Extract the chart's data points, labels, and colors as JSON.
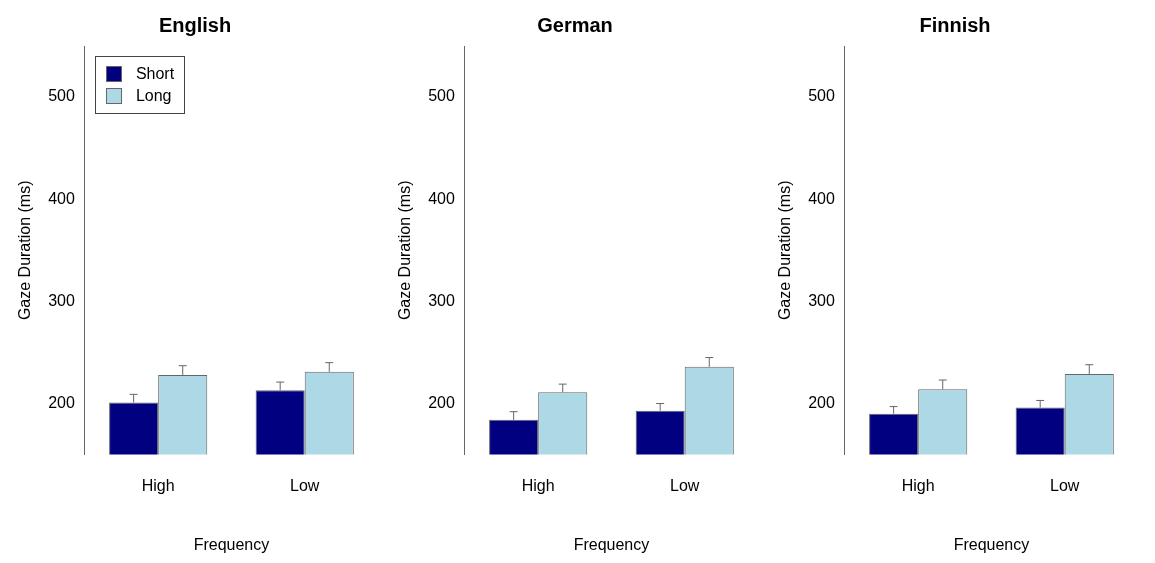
{
  "chart_data": [
    {
      "type": "bar",
      "title": "English",
      "xlabel": "Frequency",
      "ylabel": "Gaze Duration (ms)",
      "categories": [
        "High",
        "Low"
      ],
      "ylim": [
        150,
        550
      ],
      "yticks": [
        200,
        300,
        400,
        500
      ],
      "grid": false,
      "legend": "top left",
      "series": [
        {
          "name": "Short",
          "color": "#000080",
          "values": [
            201,
            213
          ],
          "errors": [
            [
              201,
              209
            ],
            [
              213,
              221
            ]
          ]
        },
        {
          "name": "Long",
          "color": "#add8e6",
          "values": [
            228,
            231
          ],
          "errors": [
            [
              228,
              237
            ],
            [
              231,
              240
            ]
          ]
        }
      ]
    },
    {
      "type": "bar",
      "title": "German",
      "xlabel": "Frequency",
      "ylabel": "Gaze Duration (ms)",
      "categories": [
        "High",
        "Low"
      ],
      "ylim": [
        150,
        550
      ],
      "yticks": [
        200,
        300,
        400,
        500
      ],
      "grid": false,
      "series": [
        {
          "color": "#000080",
          "values": [
            184,
            193
          ],
          "errors": [
            [
              184,
              192
            ],
            [
              193,
              200
            ]
          ]
        },
        {
          "color": "#add8e6",
          "values": [
            211,
            236
          ],
          "errors": [
            [
              211,
              219
            ],
            [
              236,
              245
            ]
          ]
        }
      ]
    },
    {
      "type": "bar",
      "title": "Finnish",
      "xlabel": "Frequency",
      "ylabel": "Gaze Duration (ms)",
      "categories": [
        "High",
        "Low"
      ],
      "ylim": [
        150,
        550
      ],
      "yticks": [
        200,
        300,
        400,
        500
      ],
      "grid": false,
      "series": [
        {
          "color": "#000080",
          "values": [
            190,
            196
          ],
          "errors": [
            [
              190,
              197
            ],
            [
              196,
              203
            ]
          ]
        },
        {
          "color": "#add8e6",
          "values": [
            214,
            229
          ],
          "errors": [
            [
              214,
              223
            ],
            [
              229,
              238
            ]
          ]
        }
      ]
    }
  ]
}
